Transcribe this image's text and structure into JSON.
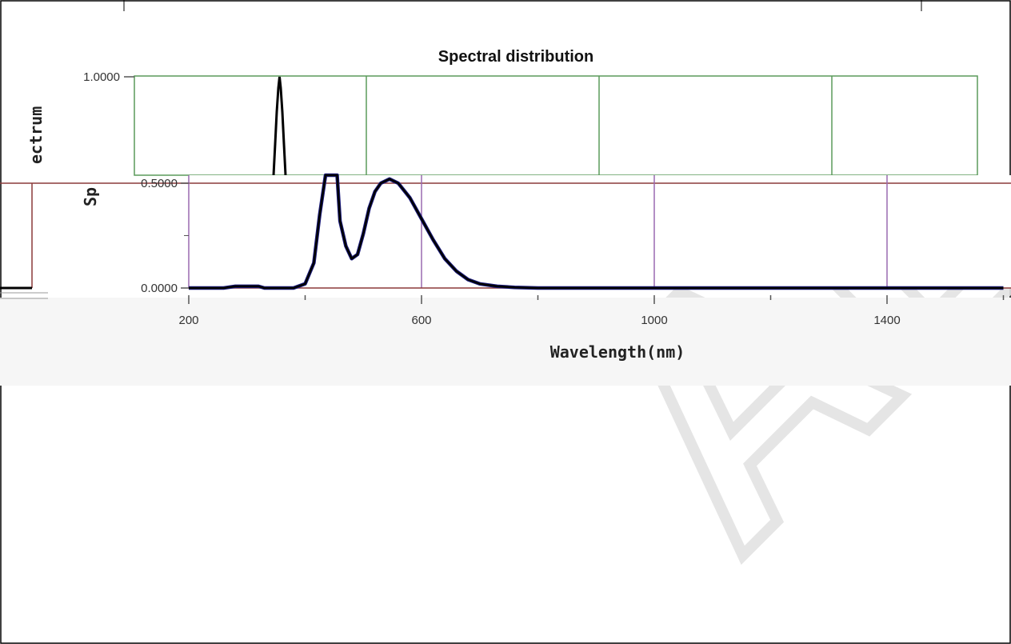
{
  "chart_data": {
    "type": "line",
    "title": "Spectral distribution",
    "xlabel": "Wavelength(nm)",
    "ylabel": "Spectrum",
    "ylabel_visible_upper": "ectrum",
    "ylabel_visible_lower": "Sp",
    "watermark": "AL",
    "xlim": [
      200,
      1600
    ],
    "ylim": [
      0,
      1.0
    ],
    "x_ticks": [
      "200",
      "600",
      "1000",
      "1400"
    ],
    "y_ticks": [
      "0.0000",
      "0.5000",
      "1.0000"
    ],
    "grid": true,
    "legend": "none",
    "series": [
      {
        "x": [
          200,
          260,
          280,
          320,
          330,
          380,
          400,
          415,
          425,
          435,
          440,
          445,
          450,
          455,
          460,
          470,
          480,
          490,
          500,
          510,
          520,
          530,
          545,
          560,
          580,
          600,
          620,
          640,
          660,
          680,
          700,
          730,
          760,
          800,
          900,
          1000,
          1200,
          1400,
          1600
        ],
        "y": [
          0.0,
          0.0,
          0.008,
          0.008,
          0.0,
          0.0,
          0.02,
          0.12,
          0.35,
          0.7,
          0.9,
          1.0,
          0.85,
          0.55,
          0.32,
          0.2,
          0.14,
          0.16,
          0.26,
          0.38,
          0.46,
          0.5,
          0.52,
          0.5,
          0.43,
          0.33,
          0.23,
          0.14,
          0.08,
          0.04,
          0.02,
          0.008,
          0.003,
          0.0,
          0.0,
          0.0,
          0.0,
          0.0,
          0.0
        ]
      }
    ],
    "colors": {
      "upper_grid": "#5a9a5a",
      "lower_grid": "#8b3a3a",
      "lower_vgrid": "#9a6ab0",
      "line": "#000000",
      "line_edge": "#1a1a7a"
    }
  }
}
